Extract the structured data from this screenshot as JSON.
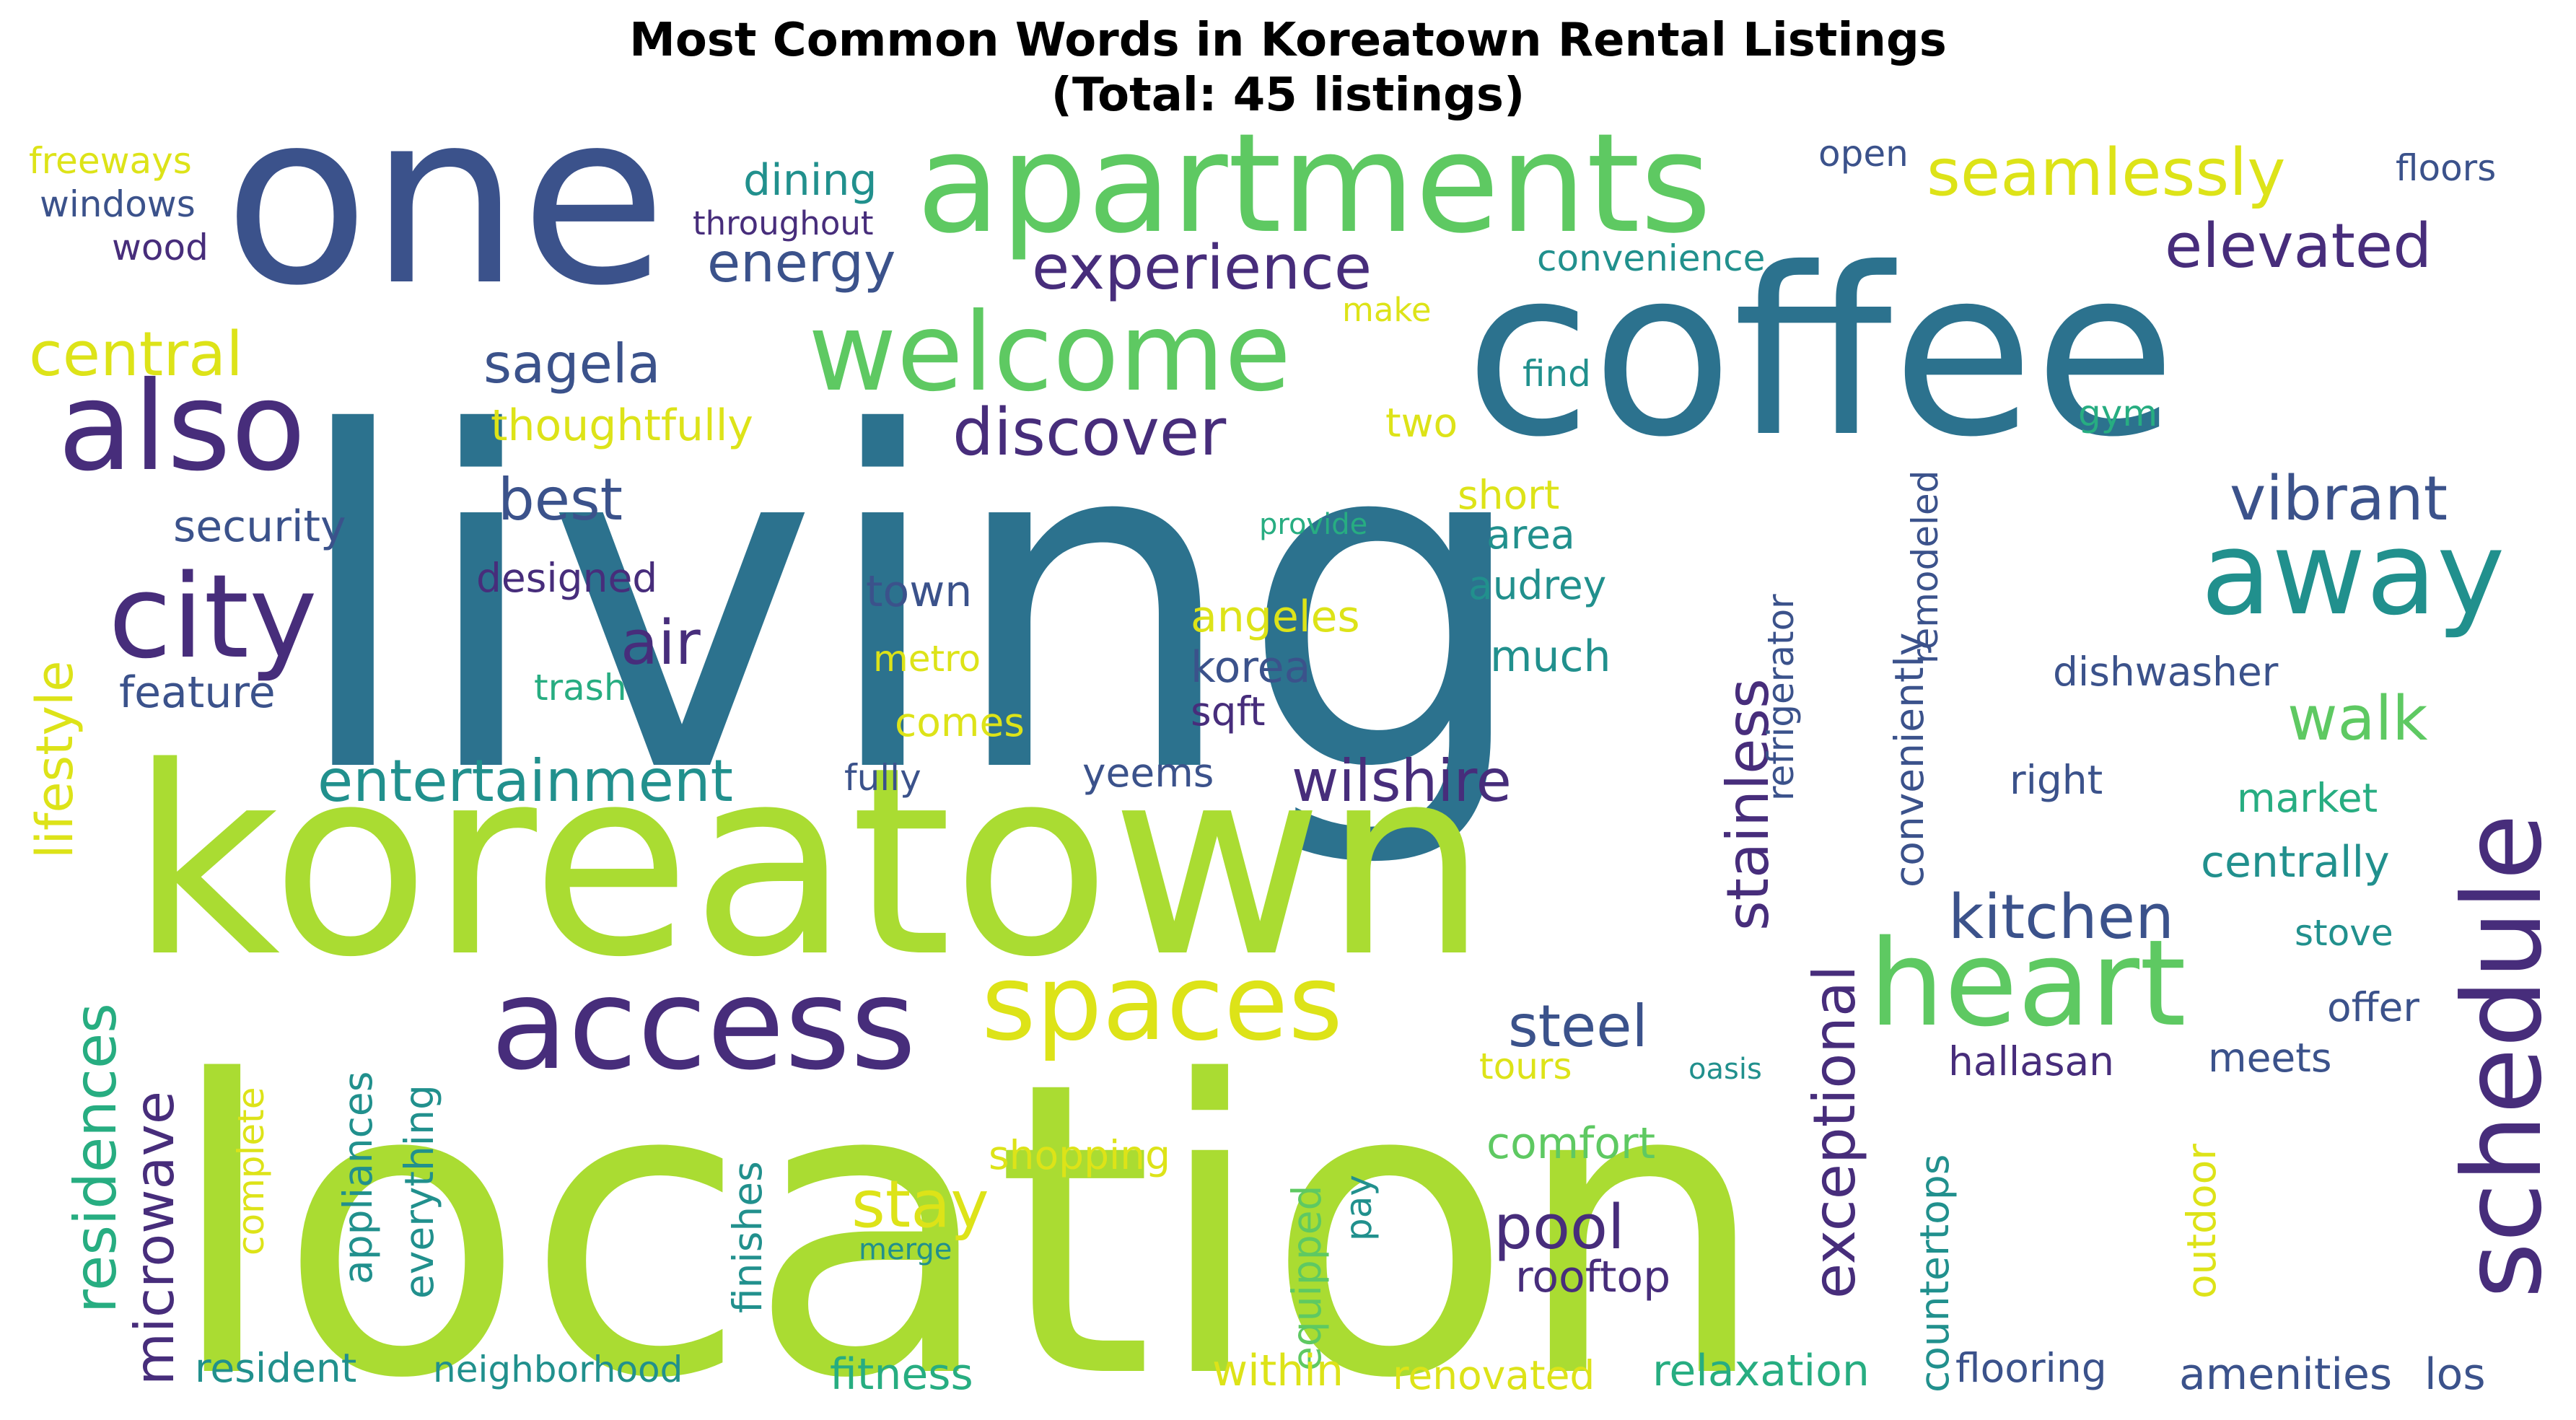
{
  "title": {
    "line1": "Most Common Words in Koreatown Rental Listings",
    "line2": "(Total: 45 listings)"
  },
  "palette": {
    "dark_purple": "#472d7b",
    "indigo": "#3b528b",
    "steel_blue": "#2c728e",
    "teal": "#21908d",
    "sea_green": "#27ad81",
    "green": "#5ec962",
    "lime": "#aadc32",
    "yellow": "#dde318"
  },
  "words": [
    {
      "text": "living",
      "color": "steel_blue"
    },
    {
      "text": "location",
      "color": "lime"
    },
    {
      "text": "koreatown",
      "color": "lime"
    },
    {
      "text": "one",
      "color": "indigo"
    },
    {
      "text": "coffee",
      "color": "steel_blue"
    },
    {
      "text": "apartments",
      "color": "green"
    },
    {
      "text": "welcome",
      "color": "green"
    },
    {
      "text": "also",
      "color": "dark_purple"
    },
    {
      "text": "city",
      "color": "dark_purple"
    },
    {
      "text": "access",
      "color": "dark_purple"
    },
    {
      "text": "heart",
      "color": "green"
    },
    {
      "text": "spaces",
      "color": "yellow"
    },
    {
      "text": "away",
      "color": "teal"
    },
    {
      "text": "schedule",
      "color": "dark_purple"
    },
    {
      "text": "seamlessly",
      "color": "yellow"
    },
    {
      "text": "elevated",
      "color": "dark_purple"
    },
    {
      "text": "experience",
      "color": "dark_purple"
    },
    {
      "text": "discover",
      "color": "dark_purple"
    },
    {
      "text": "energy",
      "color": "indigo"
    },
    {
      "text": "dining",
      "color": "teal"
    },
    {
      "text": "central",
      "color": "yellow"
    },
    {
      "text": "sagela",
      "color": "indigo"
    },
    {
      "text": "thoughtfully",
      "color": "yellow"
    },
    {
      "text": "best",
      "color": "indigo"
    },
    {
      "text": "vibrant",
      "color": "indigo"
    },
    {
      "text": "air",
      "color": "dark_purple"
    },
    {
      "text": "walk",
      "color": "green"
    },
    {
      "text": "entertainment",
      "color": "teal"
    },
    {
      "text": "wilshire",
      "color": "dark_purple"
    },
    {
      "text": "kitchen",
      "color": "indigo"
    },
    {
      "text": "stainless",
      "color": "dark_purple"
    },
    {
      "text": "exceptional",
      "color": "dark_purple"
    },
    {
      "text": "residences",
      "color": "sea_green"
    },
    {
      "text": "microwave",
      "color": "dark_purple"
    },
    {
      "text": "lifestyle",
      "color": "yellow"
    },
    {
      "text": "steel",
      "color": "indigo"
    },
    {
      "text": "pool",
      "color": "dark_purple"
    },
    {
      "text": "stay",
      "color": "yellow"
    },
    {
      "text": "freeways",
      "color": "yellow"
    },
    {
      "text": "windows",
      "color": "indigo"
    },
    {
      "text": "wood",
      "color": "dark_purple"
    },
    {
      "text": "throughout",
      "color": "dark_purple"
    },
    {
      "text": "open",
      "color": "indigo"
    },
    {
      "text": "floors",
      "color": "indigo"
    },
    {
      "text": "convenience",
      "color": "teal"
    },
    {
      "text": "make",
      "color": "yellow"
    },
    {
      "text": "find",
      "color": "teal"
    },
    {
      "text": "two",
      "color": "yellow"
    },
    {
      "text": "gym",
      "color": "sea_green"
    },
    {
      "text": "short",
      "color": "yellow"
    },
    {
      "text": "provide",
      "color": "sea_green"
    },
    {
      "text": "area",
      "color": "teal"
    },
    {
      "text": "audrey",
      "color": "teal"
    },
    {
      "text": "security",
      "color": "indigo"
    },
    {
      "text": "designed",
      "color": "dark_purple"
    },
    {
      "text": "town",
      "color": "indigo"
    },
    {
      "text": "angeles",
      "color": "yellow"
    },
    {
      "text": "much",
      "color": "teal"
    },
    {
      "text": "metro",
      "color": "yellow"
    },
    {
      "text": "korea",
      "color": "indigo"
    },
    {
      "text": "trash",
      "color": "sea_green"
    },
    {
      "text": "feature",
      "color": "indigo"
    },
    {
      "text": "sqft",
      "color": "dark_purple"
    },
    {
      "text": "comes",
      "color": "yellow"
    },
    {
      "text": "fully",
      "color": "indigo"
    },
    {
      "text": "yeems",
      "color": "indigo"
    },
    {
      "text": "remodeled",
      "color": "indigo"
    },
    {
      "text": "refrigerator",
      "color": "indigo"
    },
    {
      "text": "conveniently",
      "color": "indigo"
    },
    {
      "text": "dishwasher",
      "color": "indigo"
    },
    {
      "text": "right",
      "color": "indigo"
    },
    {
      "text": "market",
      "color": "sea_green"
    },
    {
      "text": "centrally",
      "color": "teal"
    },
    {
      "text": "stove",
      "color": "teal"
    },
    {
      "text": "offer",
      "color": "indigo"
    },
    {
      "text": "hallasan",
      "color": "dark_purple"
    },
    {
      "text": "meets",
      "color": "indigo"
    },
    {
      "text": "oasis",
      "color": "teal"
    },
    {
      "text": "tours",
      "color": "yellow"
    },
    {
      "text": "comfort",
      "color": "green"
    },
    {
      "text": "rooftop",
      "color": "dark_purple"
    },
    {
      "text": "shopping",
      "color": "yellow"
    },
    {
      "text": "complete",
      "color": "yellow"
    },
    {
      "text": "appliances",
      "color": "teal"
    },
    {
      "text": "everything",
      "color": "teal"
    },
    {
      "text": "finishes",
      "color": "teal"
    },
    {
      "text": "equipped",
      "color": "green"
    },
    {
      "text": "pay",
      "color": "teal"
    },
    {
      "text": "merge",
      "color": "teal"
    },
    {
      "text": "outdoor",
      "color": "yellow"
    },
    {
      "text": "countertops",
      "color": "teal"
    },
    {
      "text": "resident",
      "color": "teal"
    },
    {
      "text": "neighborhood",
      "color": "teal"
    },
    {
      "text": "fitness",
      "color": "sea_green"
    },
    {
      "text": "within",
      "color": "yellow"
    },
    {
      "text": "renovated",
      "color": "yellow"
    },
    {
      "text": "relaxation",
      "color": "sea_green"
    },
    {
      "text": "flooring",
      "color": "indigo"
    },
    {
      "text": "amenities",
      "color": "indigo"
    },
    {
      "text": "los",
      "color": "indigo"
    }
  ]
}
